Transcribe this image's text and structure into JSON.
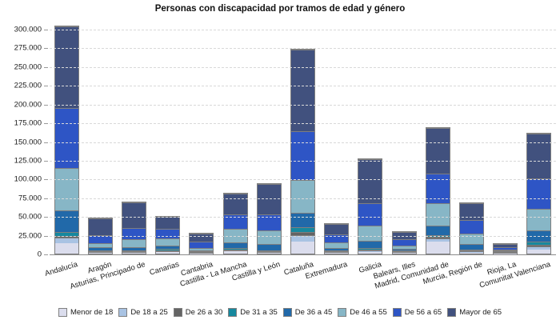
{
  "title": "Personas con discapacidad por tramos de edad y género",
  "chart_data": {
    "type": "bar",
    "stacked": true,
    "title": "Personas con discapacidad por tramos de edad y género",
    "xlabel": "",
    "ylabel": "",
    "ylim": [
      0,
      300000
    ],
    "ytick_step": 25000,
    "ytick_labels": [
      "0",
      "25.000",
      "50.000",
      "75.000",
      "100.000",
      "125.000",
      "150.000",
      "175.000",
      "200.000",
      "225.000",
      "250.000",
      "275.000",
      "300.000"
    ],
    "grid": "horizontal-dashed",
    "legend_position": "bottom",
    "categories": [
      "Andalucía",
      "Aragón",
      "Asturias, Principado de",
      "Canarias",
      "Cantabria",
      "Castilla - La Mancha",
      "Castilla y León",
      "Cataluña",
      "Extremadura",
      "Galicia",
      "Balears, Illes",
      "Madrid, Comunidad de",
      "Murcia, Región de",
      "Rioja, La",
      "Comunitat Valenciana"
    ],
    "series": [
      {
        "name": "Menor de 18",
        "color": "#dbdded",
        "values": [
          14000,
          1300,
          1000,
          2300,
          500,
          3000,
          1200,
          16300,
          800,
          2500,
          1000,
          16300,
          1500,
          300,
          5700
        ]
      },
      {
        "name": "De 18 a 25",
        "color": "#a9c3e3",
        "values": [
          7000,
          1300,
          1200,
          1400,
          600,
          1500,
          1300,
          8200,
          1000,
          2000,
          1000,
          3700,
          1700,
          300,
          3600
        ]
      },
      {
        "name": "De 26 a 30",
        "color": "#646464",
        "values": [
          3000,
          700,
          700,
          800,
          300,
          800,
          800,
          4600,
          600,
          1200,
          500,
          2100,
          1000,
          200,
          2800
        ]
      },
      {
        "name": "De 31 a 35",
        "color": "#16889e",
        "values": [
          5000,
          1000,
          1000,
          1200,
          500,
          1800,
          1200,
          6100,
          900,
          1800,
          800,
          2400,
          1500,
          300,
          3600
        ]
      },
      {
        "name": "De 36 a 45",
        "color": "#2169a9",
        "values": [
          29000,
          3500,
          4600,
          4700,
          1000,
          7500,
          8500,
          19600,
          3500,
          10000,
          2500,
          13200,
          7100,
          700,
          15300
        ]
      },
      {
        "name": "De 46 a 55",
        "color": "#87b6c6",
        "values": [
          56000,
          5300,
          10000,
          9900,
          3200,
          17800,
          17800,
          43000,
          7900,
          19600,
          4000,
          29500,
          14200,
          1200,
          29000
        ]
      },
      {
        "name": "De 56 a 65",
        "color": "#2e55c5",
        "values": [
          80000,
          10700,
          15000,
          13100,
          7800,
          19200,
          21400,
          66000,
          10000,
          30000,
          8200,
          40000,
          17800,
          2300,
          40000
        ]
      },
      {
        "name": "Mayor de 65",
        "color": "#41517e",
        "values": [
          109000,
          22800,
          34000,
          15400,
          11400,
          28000,
          41000,
          108000,
          14500,
          59000,
          10000,
          61000,
          23000,
          5000,
          60000
        ]
      }
    ],
    "colors": {
      "bar_border": "#7f7f7f",
      "gridline": "#d9d9d9",
      "axis": "#8a8a8a",
      "text": "#1a1a1a"
    }
  }
}
